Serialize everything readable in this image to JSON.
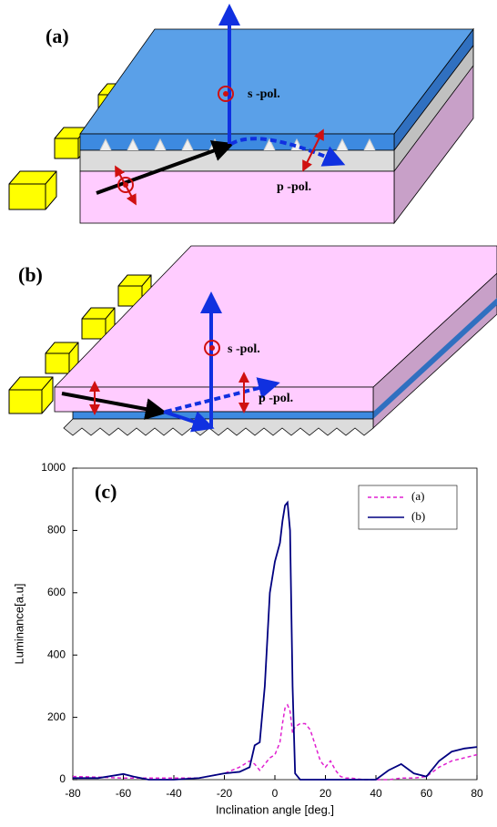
{
  "diagrams": {
    "a": {
      "label": "(a)",
      "s_label": "s -pol.",
      "p_label": "p -pol."
    },
    "b": {
      "label": "(b)",
      "s_label": "s -pol.",
      "p_label": "p -pol."
    }
  },
  "chart_data": {
    "type": "line",
    "panel_label": "(c)",
    "x_label": "Inclination angle [deg.]",
    "y_label": "Luminance[a.u]",
    "x": [
      -80,
      -70,
      -60,
      -56,
      -50,
      -40,
      -30,
      -20,
      -14,
      -10,
      -8,
      -6,
      -4,
      -2,
      0,
      2,
      3,
      4,
      5,
      6,
      7,
      8,
      10,
      12,
      14,
      16,
      18,
      20,
      22,
      24,
      26,
      28,
      30,
      35,
      40,
      45,
      50,
      55,
      60,
      65,
      70,
      75,
      80
    ],
    "series": [
      {
        "name": "(a)",
        "color": "#e020d0",
        "dashed": true,
        "values": [
          10,
          8,
          5,
          5,
          5,
          5,
          5,
          20,
          40,
          60,
          50,
          30,
          50,
          70,
          80,
          120,
          180,
          230,
          240,
          220,
          150,
          170,
          180,
          180,
          160,
          110,
          60,
          40,
          60,
          30,
          10,
          5,
          5,
          0,
          0,
          0,
          5,
          5,
          10,
          40,
          60,
          70,
          80
        ]
      },
      {
        "name": "(b)",
        "color": "#000080",
        "dashed": false,
        "values": [
          5,
          5,
          18,
          10,
          0,
          0,
          5,
          20,
          25,
          40,
          110,
          120,
          300,
          600,
          700,
          760,
          830,
          880,
          890,
          800,
          300,
          20,
          0,
          0,
          0,
          0,
          0,
          0,
          0,
          0,
          0,
          0,
          0,
          0,
          0,
          30,
          50,
          20,
          10,
          60,
          90,
          100,
          105
        ]
      }
    ],
    "xlim": [
      -80,
      80
    ],
    "xticks": [
      -80,
      -60,
      -40,
      -20,
      0,
      20,
      40,
      60,
      80
    ],
    "ylim": [
      0,
      1000
    ],
    "yticks": [
      0,
      200,
      400,
      600,
      800,
      1000
    ],
    "legend": "upper right"
  }
}
